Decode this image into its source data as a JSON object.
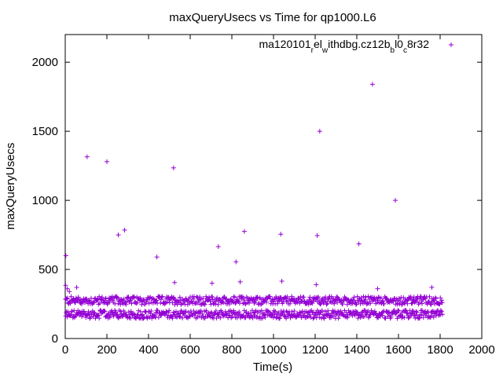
{
  "chart_data": {
    "type": "scatter",
    "title": "maxQueryUsecs vs Time for qp1000.L6",
    "xlabel": "Time(s)",
    "ylabel": "maxQueryUsecs",
    "xlim": [
      0,
      2000
    ],
    "ylim": [
      0,
      2200
    ],
    "x_ticks": [
      0,
      200,
      400,
      600,
      800,
      1000,
      1200,
      1400,
      1600,
      1800,
      2000
    ],
    "y_ticks": [
      0,
      500,
      1000,
      1500,
      2000
    ],
    "grid": false,
    "legend_placement": "top-right",
    "marker": "plus",
    "series": [
      {
        "name": "ma120101_rel_withdbg.cz12b_bl0_c8r32",
        "color": "#9400d3",
        "band_points": {
          "x_start": 0,
          "x_end": 1810,
          "upper_band_center": 275,
          "lower_band_center": 175,
          "band_spread": 30
        },
        "points": [
          [
            2,
            385
          ],
          [
            3,
            600
          ],
          [
            10,
            360
          ],
          [
            20,
            340
          ],
          [
            55,
            370
          ],
          [
            105,
            1315
          ],
          [
            200,
            1280
          ],
          [
            255,
            750
          ],
          [
            285,
            785
          ],
          [
            440,
            590
          ],
          [
            520,
            1235
          ],
          [
            525,
            405
          ],
          [
            705,
            400
          ],
          [
            735,
            665
          ],
          [
            820,
            555
          ],
          [
            840,
            410
          ],
          [
            860,
            775
          ],
          [
            1035,
            755
          ],
          [
            1040,
            415
          ],
          [
            1205,
            390
          ],
          [
            1210,
            745
          ],
          [
            1222,
            1500
          ],
          [
            1410,
            685
          ],
          [
            1475,
            1840
          ],
          [
            1500,
            360
          ],
          [
            1585,
            1000
          ],
          [
            1760,
            370
          ]
        ]
      }
    ]
  }
}
